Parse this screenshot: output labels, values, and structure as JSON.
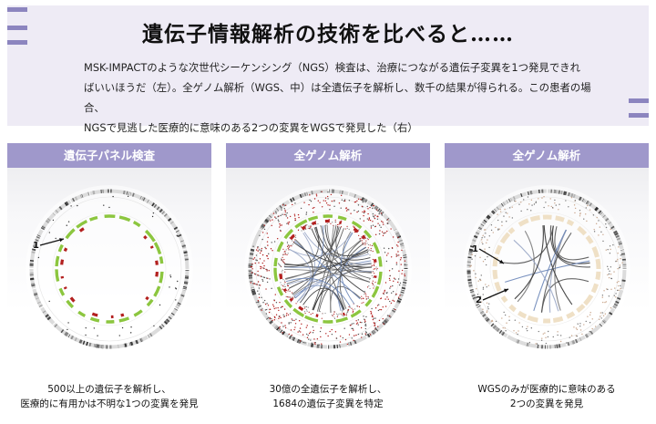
{
  "title": "遺伝子情報解析の技術を比べると……",
  "description": [
    "MSK-IMPACTのような次世代シーケンシング（NGS）検査は、治療につながる遺伝子変異を1つ発見できれ",
    "ばいいほうだ（左）。全ゲノム解析（WGS、中）は全遺伝子を解析し、数千の結果が得られる。この患者の場合、",
    "NGSで見逃した医療的に意味のある2つの変異をWGSで発見した（右）"
  ],
  "panels": [
    {
      "heading": "遺伝子パネル検査",
      "markers": [
        "1"
      ],
      "caption": [
        "500以上の遺伝子を解析し、",
        "医療的に有用かは不明な1つの変異を発見"
      ]
    },
    {
      "heading": "全ゲノム解析",
      "markers": [],
      "caption": [
        "30億の全遺伝子を解析し、",
        "1684の遺伝子変異を特定"
      ]
    },
    {
      "heading": "全ゲノム解析",
      "markers": [
        "1",
        "2"
      ],
      "caption": [
        "WGSのみが医療的に意味のある",
        "2つの変異を発見"
      ]
    }
  ],
  "colors": {
    "accent": "#9f98cb",
    "header_bg": "#eeebf5",
    "green": "#8cc63f",
    "red": "#b3201f"
  }
}
